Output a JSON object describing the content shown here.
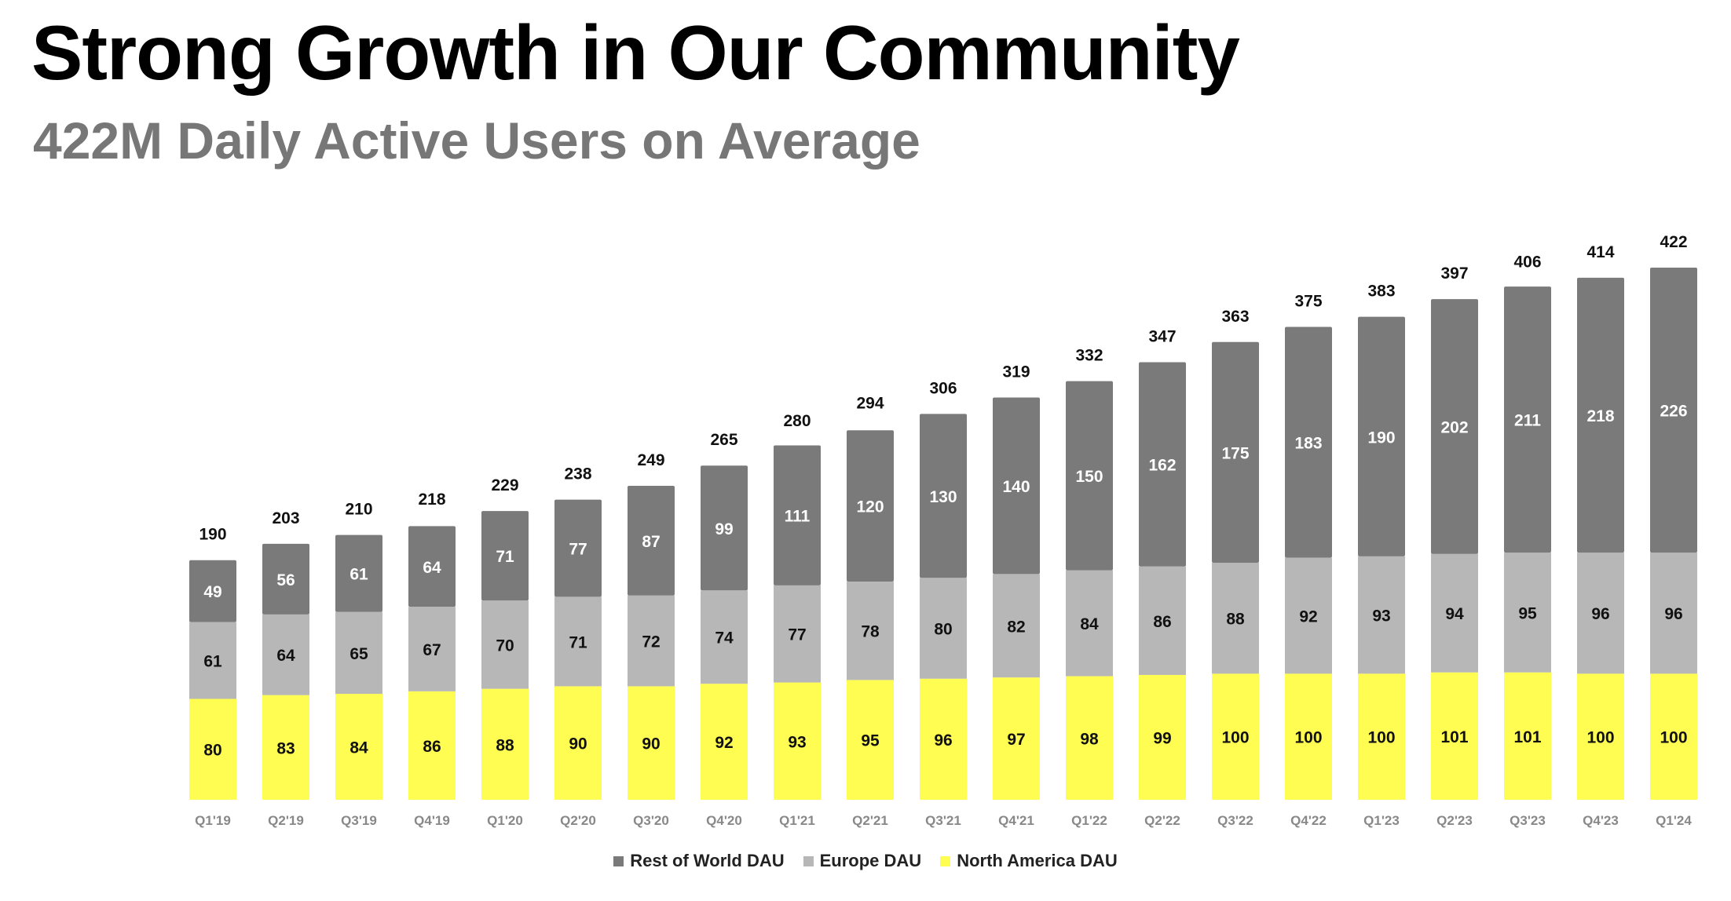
{
  "header": {
    "title": "Strong Growth in Our Community",
    "subtitle": "422M Daily Active Users on Average"
  },
  "chart_data": {
    "type": "bar",
    "stacked": true,
    "title": "Strong Growth in Our Community",
    "subtitle": "422M Daily Active Users on Average",
    "xlabel": "",
    "ylabel": "",
    "grid": false,
    "legend_position": "bottom-center",
    "categories": [
      "Q1'19",
      "Q2'19",
      "Q3'19",
      "Q4'19",
      "Q1'20",
      "Q2'20",
      "Q3'20",
      "Q4'20",
      "Q1'21",
      "Q2'21",
      "Q3'21",
      "Q4'21",
      "Q1'22",
      "Q2'22",
      "Q3'22",
      "Q4'22",
      "Q1'23",
      "Q2'23",
      "Q3'23",
      "Q4'23",
      "Q1'24"
    ],
    "series": [
      {
        "name": "North America DAU",
        "color": "#FFFC52",
        "label_color": "#111111",
        "values": [
          80,
          83,
          84,
          86,
          88,
          90,
          90,
          92,
          93,
          95,
          96,
          97,
          98,
          99,
          100,
          100,
          100,
          101,
          101,
          100,
          100
        ]
      },
      {
        "name": "Europe DAU",
        "color": "#B7B7B7",
        "label_color": "#111111",
        "values": [
          61,
          64,
          65,
          67,
          70,
          71,
          72,
          74,
          77,
          78,
          80,
          82,
          84,
          86,
          88,
          92,
          93,
          94,
          95,
          96,
          96
        ]
      },
      {
        "name": "Rest of World DAU",
        "color": "#7A7A7A",
        "label_color": "#FFFFFF",
        "values": [
          49,
          56,
          61,
          64,
          71,
          77,
          87,
          99,
          111,
          120,
          130,
          140,
          150,
          162,
          175,
          183,
          190,
          202,
          211,
          218,
          226
        ]
      }
    ],
    "totals": [
      190,
      203,
      210,
      218,
      229,
      238,
      249,
      265,
      280,
      294,
      306,
      319,
      332,
      347,
      363,
      375,
      383,
      397,
      406,
      414,
      422
    ],
    "ylim": [
      0,
      422
    ],
    "legend": [
      {
        "name": "Rest of World DAU",
        "color": "#7A7A7A"
      },
      {
        "name": "Europe DAU",
        "color": "#B7B7B7"
      },
      {
        "name": "North America DAU",
        "color": "#FFFC52"
      }
    ]
  }
}
